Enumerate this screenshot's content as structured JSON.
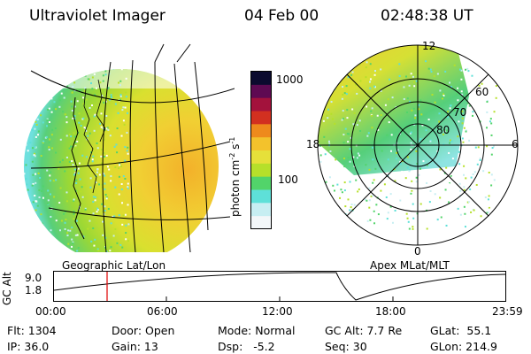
{
  "header": {
    "title": "Ultraviolet Imager",
    "date": "04 Feb 00",
    "time": "02:48:38 UT"
  },
  "left_panel": {
    "label": "Geographic Lat/Lon"
  },
  "colorbar": {
    "unit": "photon cm",
    "unit_sup1": "-2",
    "unit_mid": "s",
    "unit_sup2": "-1",
    "ticks": [
      "1000",
      "100"
    ],
    "colors": [
      "#f3f7f9",
      "#c7eef2",
      "#5ee0d8",
      "#52d46a",
      "#b6e02a",
      "#e6e03a",
      "#f3c22c",
      "#ee8a1c",
      "#d23020",
      "#a3123c",
      "#5e0a52",
      "#0b0a2e"
    ]
  },
  "right_panel": {
    "label": "Apex  MLat/MLT",
    "mlt_labels": {
      "top": "12",
      "right": "6",
      "bottom": "0",
      "left": "18"
    },
    "lat_labels": [
      "60",
      "70",
      "80"
    ]
  },
  "timeline": {
    "axis_label": "GC Alt",
    "y_ticks": [
      "9.0",
      "1.8"
    ],
    "x_ticks": [
      "00:00",
      "06:00",
      "12:00",
      "18:00",
      "23:59"
    ]
  },
  "footer": {
    "flt": "Flt: 1304",
    "ip": "IP: 36.0",
    "door": "Door: Open",
    "gain": "Gain: 13",
    "mode": "Mode: Normal",
    "dsp": "Dsp:   -5.2",
    "gcalt": "GC Alt: 7.7 Re",
    "seq": "Seq: 30",
    "glat": "GLat:  55.1",
    "glon": "GLon: 214.9"
  }
}
